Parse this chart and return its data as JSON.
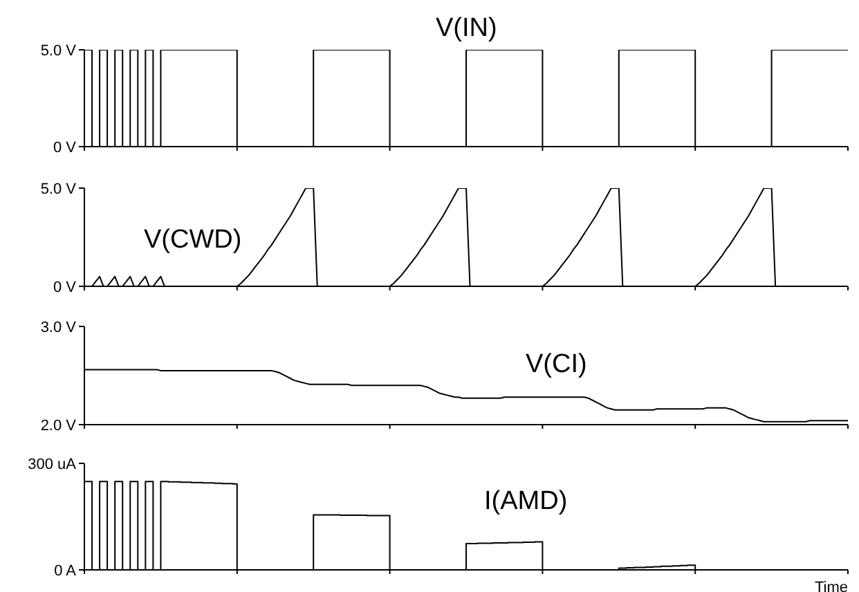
{
  "chart_data": [
    {
      "type": "step",
      "categories": [
        null,
        null,
        null,
        null,
        null,
        null,
        null,
        null,
        null,
        null,
        null,
        null,
        null,
        null,
        null,
        null,
        null,
        null,
        null,
        null,
        null,
        null,
        null,
        null,
        null,
        null,
        null,
        null,
        null,
        null,
        null,
        null,
        null,
        null,
        null,
        null,
        null,
        null,
        null,
        null,
        null,
        null,
        null,
        null,
        null,
        null,
        null,
        null,
        null,
        null,
        null,
        null,
        null,
        null,
        null,
        null,
        null,
        null,
        null,
        null,
        null,
        null,
        null,
        null,
        null,
        null,
        null,
        null,
        null,
        null,
        null,
        null,
        null,
        null,
        null,
        null,
        null,
        null,
        null,
        null,
        null,
        null,
        null,
        null,
        null,
        null,
        null,
        null,
        null,
        null,
        null,
        null,
        null,
        null,
        null,
        null,
        null,
        null,
        null,
        null,
        null,
        null,
        null,
        null,
        null,
        null,
        null,
        null,
        null,
        null,
        null,
        null,
        null,
        null,
        null,
        null,
        null,
        null,
        null,
        null,
        null,
        null,
        null,
        null,
        null,
        null,
        null,
        null,
        null,
        null,
        null,
        null,
        null,
        null,
        null,
        null,
        null,
        null,
        null,
        null,
        null,
        null,
        null,
        null,
        null,
        null,
        null,
        null,
        null,
        null,
        null,
        null,
        null,
        null,
        null,
        null,
        null,
        null,
        null,
        null,
        null,
        null,
        null,
        null,
        null,
        null,
        null,
        null,
        null,
        null,
        null,
        null,
        null,
        null,
        null,
        null,
        null,
        null,
        null,
        null,
        null,
        null,
        null,
        null,
        null,
        null,
        null,
        null,
        null,
        null,
        null,
        null,
        null,
        null,
        null,
        null,
        null,
        null,
        null,
        null,
        null
      ],
      "tick_labels": "y",
      "ylim": [
        0,
        5
      ],
      "yticks": [
        {
          "value": 0,
          "label": "0 V"
        },
        {
          "value": 5,
          "label": "5.0 V"
        }
      ],
      "series": [
        {
          "name": "V(IN)",
          "color": "#000000",
          "values": [
            5,
            5,
            0,
            0,
            5,
            5,
            0,
            0,
            5,
            5,
            0,
            0,
            5,
            5,
            0,
            0,
            5,
            5,
            0,
            0,
            5,
            5,
            5,
            5,
            5,
            5,
            5,
            5,
            5,
            5,
            5,
            5,
            5,
            5,
            5,
            5,
            5,
            5,
            5,
            5,
            0,
            0,
            0,
            0,
            0,
            0,
            0,
            0,
            0,
            0,
            0,
            0,
            0,
            0,
            0,
            0,
            0,
            0,
            0,
            0,
            5,
            5,
            5,
            5,
            5,
            5,
            5,
            5,
            5,
            5,
            5,
            5,
            5,
            5,
            5,
            5,
            5,
            5,
            5,
            5,
            0,
            0,
            0,
            0,
            0,
            0,
            0,
            0,
            0,
            0,
            0,
            0,
            0,
            0,
            0,
            0,
            0,
            0,
            0,
            0,
            5,
            5,
            5,
            5,
            5,
            5,
            5,
            5,
            5,
            5,
            5,
            5,
            5,
            5,
            5,
            5,
            5,
            5,
            5,
            5,
            0,
            0,
            0,
            0,
            0,
            0,
            0,
            0,
            0,
            0,
            0,
            0,
            0,
            0,
            0,
            0,
            0,
            0,
            0,
            0,
            5,
            5,
            5,
            5,
            5,
            5,
            5,
            5,
            5,
            5,
            5,
            5,
            5,
            5,
            5,
            5,
            5,
            5,
            5,
            5,
            0,
            0,
            0,
            0,
            0,
            0,
            0,
            0,
            0,
            0,
            0,
            0,
            0,
            0,
            0,
            0,
            0,
            0,
            0,
            0,
            5,
            5,
            5,
            5,
            5,
            5,
            5,
            5,
            5,
            5,
            5,
            5,
            5,
            5,
            5,
            5,
            5,
            5,
            5,
            5,
            5
          ]
        }
      ]
    },
    {
      "type": "line",
      "categories": [
        null,
        null,
        null,
        null,
        null,
        null,
        null,
        null,
        null,
        null,
        null,
        null,
        null,
        null,
        null,
        null,
        null,
        null,
        null,
        null,
        null,
        null,
        null,
        null,
        null,
        null,
        null,
        null,
        null,
        null,
        null,
        null,
        null,
        null,
        null,
        null,
        null,
        null,
        null,
        null,
        null,
        null,
        null,
        null,
        null,
        null,
        null,
        null,
        null,
        null,
        null,
        null,
        null,
        null,
        null,
        null,
        null,
        null,
        null,
        null,
        null,
        null,
        null,
        null,
        null,
        null,
        null,
        null,
        null,
        null,
        null,
        null,
        null,
        null,
        null,
        null,
        null,
        null,
        null,
        null,
        null,
        null,
        null,
        null,
        null,
        null,
        null,
        null,
        null,
        null,
        null,
        null,
        null,
        null,
        null,
        null,
        null,
        null,
        null,
        null,
        null,
        null,
        null,
        null,
        null,
        null,
        null,
        null,
        null,
        null,
        null,
        null,
        null,
        null,
        null,
        null,
        null,
        null,
        null,
        null,
        null,
        null,
        null,
        null,
        null,
        null,
        null,
        null,
        null,
        null,
        null,
        null,
        null,
        null,
        null,
        null,
        null,
        null,
        null,
        null,
        null,
        null,
        null,
        null,
        null,
        null,
        null,
        null,
        null,
        null,
        null,
        null,
        null,
        null,
        null,
        null,
        null,
        null,
        null,
        null,
        null,
        null,
        null,
        null,
        null,
        null,
        null,
        null,
        null,
        null,
        null,
        null,
        null,
        null,
        null,
        null,
        null,
        null,
        null,
        null,
        null,
        null,
        null,
        null,
        null,
        null,
        null,
        null,
        null,
        null,
        null,
        null,
        null,
        null,
        null,
        null,
        null,
        null,
        null,
        null,
        null
      ],
      "tick_labels": "y",
      "ylim": [
        0,
        5
      ],
      "yticks": [
        {
          "value": 0,
          "label": "0 V"
        },
        {
          "value": 5,
          "label": "5.0 V"
        }
      ],
      "series": [
        {
          "name": "V(CWD)",
          "color": "#000000",
          "values": [
            0,
            0,
            0,
            0.25,
            0.5,
            0,
            0,
            0.25,
            0.5,
            0,
            0,
            0.25,
            0.5,
            0,
            0,
            0.25,
            0.5,
            0,
            0,
            0.25,
            0.5,
            0,
            0,
            0,
            0,
            0,
            0,
            0,
            0,
            0,
            0,
            0,
            0,
            0,
            0,
            0,
            0,
            0,
            0,
            0,
            0,
            0.15,
            0.35,
            0.55,
            0.8,
            1.05,
            1.3,
            1.55,
            1.85,
            2.1,
            2.4,
            2.7,
            3.0,
            3.3,
            3.6,
            3.95,
            4.3,
            4.65,
            5,
            5,
            5,
            0,
            0,
            0,
            0,
            0,
            0,
            0,
            0,
            0,
            0,
            0,
            0,
            0,
            0,
            0,
            0,
            0,
            0,
            0,
            0,
            0.15,
            0.35,
            0.55,
            0.8,
            1.05,
            1.3,
            1.55,
            1.85,
            2.1,
            2.4,
            2.7,
            3.0,
            3.3,
            3.6,
            3.95,
            4.3,
            4.65,
            5,
            5,
            5,
            0,
            0,
            0,
            0,
            0,
            0,
            0,
            0,
            0,
            0,
            0,
            0,
            0,
            0,
            0,
            0,
            0,
            0,
            0,
            0,
            0.15,
            0.35,
            0.55,
            0.8,
            1.05,
            1.3,
            1.55,
            1.85,
            2.1,
            2.4,
            2.7,
            3.0,
            3.3,
            3.6,
            3.95,
            4.3,
            4.65,
            5,
            5,
            5,
            0,
            0,
            0,
            0,
            0,
            0,
            0,
            0,
            0,
            0,
            0,
            0,
            0,
            0,
            0,
            0,
            0,
            0,
            0,
            0,
            0.15,
            0.35,
            0.55,
            0.8,
            1.05,
            1.3,
            1.55,
            1.85,
            2.1,
            2.4,
            2.7,
            3.0,
            3.3,
            3.6,
            3.95,
            4.3,
            4.65,
            5,
            5,
            5,
            0,
            0,
            0,
            0,
            0,
            0,
            0,
            0,
            0,
            0,
            0,
            0,
            0,
            0,
            0,
            0,
            0,
            0,
            0,
            0
          ]
        }
      ]
    },
    {
      "type": "line",
      "categories": [
        null,
        null,
        null,
        null,
        null,
        null,
        null,
        null,
        null,
        null,
        null,
        null,
        null,
        null,
        null,
        null,
        null,
        null,
        null,
        null,
        null,
        null,
        null,
        null,
        null,
        null,
        null,
        null,
        null,
        null,
        null,
        null,
        null,
        null,
        null,
        null,
        null,
        null,
        null,
        null,
        null,
        null,
        null,
        null,
        null,
        null,
        null,
        null,
        null,
        null,
        null,
        null,
        null,
        null,
        null,
        null,
        null,
        null,
        null,
        null,
        null,
        null,
        null,
        null,
        null,
        null,
        null,
        null,
        null,
        null,
        null,
        null,
        null,
        null,
        null,
        null,
        null,
        null,
        null,
        null,
        null,
        null,
        null,
        null,
        null,
        null,
        null,
        null,
        null,
        null,
        null,
        null,
        null,
        null,
        null,
        null,
        null,
        null,
        null,
        null,
        null,
        null,
        null,
        null,
        null,
        null,
        null,
        null,
        null,
        null,
        null,
        null,
        null,
        null,
        null,
        null,
        null,
        null,
        null,
        null,
        null,
        null,
        null,
        null,
        null,
        null,
        null,
        null,
        null,
        null,
        null,
        null,
        null,
        null,
        null,
        null,
        null,
        null,
        null,
        null,
        null,
        null,
        null,
        null,
        null,
        null,
        null,
        null,
        null,
        null,
        null,
        null,
        null,
        null,
        null,
        null,
        null,
        null,
        null,
        null,
        null,
        null,
        null,
        null,
        null,
        null,
        null,
        null,
        null,
        null,
        null,
        null,
        null,
        null,
        null,
        null,
        null,
        null,
        null,
        null,
        null,
        null,
        null,
        null,
        null,
        null,
        null,
        null,
        null,
        null,
        null,
        null,
        null,
        null,
        null,
        null,
        null,
        null,
        null,
        null,
        null
      ],
      "tick_labels": "y",
      "ylim": [
        2,
        3
      ],
      "yticks": [
        {
          "value": 2,
          "label": "2.0 V"
        },
        {
          "value": 3,
          "label": "3.0 V"
        }
      ],
      "series": [
        {
          "name": "V(CI)",
          "color": "#000000",
          "values": [
            2.56,
            2.56,
            2.56,
            2.56,
            2.56,
            2.56,
            2.56,
            2.56,
            2.56,
            2.56,
            2.56,
            2.56,
            2.56,
            2.56,
            2.56,
            2.56,
            2.56,
            2.56,
            2.56,
            2.56,
            2.55,
            2.55,
            2.55,
            2.55,
            2.55,
            2.55,
            2.55,
            2.55,
            2.55,
            2.55,
            2.55,
            2.55,
            2.55,
            2.55,
            2.55,
            2.55,
            2.55,
            2.55,
            2.55,
            2.55,
            2.55,
            2.55,
            2.55,
            2.55,
            2.55,
            2.55,
            2.55,
            2.55,
            2.55,
            2.55,
            2.54,
            2.53,
            2.51,
            2.49,
            2.47,
            2.45,
            2.44,
            2.43,
            2.42,
            2.41,
            2.41,
            2.41,
            2.41,
            2.41,
            2.41,
            2.41,
            2.41,
            2.41,
            2.41,
            2.41,
            2.4,
            2.4,
            2.4,
            2.4,
            2.4,
            2.4,
            2.4,
            2.4,
            2.4,
            2.4,
            2.4,
            2.4,
            2.4,
            2.4,
            2.4,
            2.4,
            2.4,
            2.4,
            2.4,
            2.39,
            2.38,
            2.36,
            2.34,
            2.32,
            2.31,
            2.3,
            2.29,
            2.28,
            2.28,
            2.27,
            2.27,
            2.27,
            2.27,
            2.27,
            2.27,
            2.27,
            2.27,
            2.27,
            2.27,
            2.27,
            2.28,
            2.28,
            2.28,
            2.28,
            2.28,
            2.28,
            2.28,
            2.28,
            2.28,
            2.28,
            2.28,
            2.28,
            2.28,
            2.28,
            2.28,
            2.28,
            2.28,
            2.28,
            2.28,
            2.28,
            2.28,
            2.28,
            2.27,
            2.25,
            2.23,
            2.21,
            2.19,
            2.17,
            2.16,
            2.15,
            2.15,
            2.15,
            2.15,
            2.15,
            2.15,
            2.15,
            2.15,
            2.15,
            2.15,
            2.15,
            2.16,
            2.16,
            2.16,
            2.16,
            2.16,
            2.16,
            2.16,
            2.16,
            2.16,
            2.16,
            2.16,
            2.16,
            2.16,
            2.17,
            2.17,
            2.17,
            2.17,
            2.17,
            2.17,
            2.16,
            2.15,
            2.13,
            2.11,
            2.09,
            2.07,
            2.06,
            2.05,
            2.04,
            2.03,
            2.03,
            2.03,
            2.03,
            2.03,
            2.03,
            2.03,
            2.03,
            2.03,
            2.03,
            2.03,
            2.03,
            2.04,
            2.04,
            2.04,
            2.04,
            2.04,
            2.04,
            2.04,
            2.04,
            2.04,
            2.04,
            2.04
          ]
        }
      ]
    },
    {
      "type": "step",
      "categories": [
        null,
        null,
        null,
        null,
        null,
        null,
        null,
        null,
        null,
        null,
        null,
        null,
        null,
        null,
        null,
        null,
        null,
        null,
        null,
        null,
        null,
        null,
        null,
        null,
        null,
        null,
        null,
        null,
        null,
        null,
        null,
        null,
        null,
        null,
        null,
        null,
        null,
        null,
        null,
        null,
        null,
        null,
        null,
        null,
        null,
        null,
        null,
        null,
        null,
        null,
        null,
        null,
        null,
        null,
        null,
        null,
        null,
        null,
        null,
        null,
        null,
        null,
        null,
        null,
        null,
        null,
        null,
        null,
        null,
        null,
        null,
        null,
        null,
        null,
        null,
        null,
        null,
        null,
        null,
        null,
        null,
        null,
        null,
        null,
        null,
        null,
        null,
        null,
        null,
        null,
        null,
        null,
        null,
        null,
        null,
        null,
        null,
        null,
        null,
        null,
        null,
        null,
        null,
        null,
        null,
        null,
        null,
        null,
        null,
        null,
        null,
        null,
        null,
        null,
        null,
        null,
        null,
        null,
        null,
        null,
        null,
        null,
        null,
        null,
        null,
        null,
        null,
        null,
        null,
        null,
        null,
        null,
        null,
        null,
        null,
        null,
        null,
        null,
        null,
        null,
        null,
        null,
        null,
        null,
        null,
        null,
        null,
        null,
        null,
        null,
        null,
        null,
        null,
        null,
        null,
        null,
        null,
        null,
        null,
        null,
        null,
        null,
        null,
        null,
        null,
        null,
        null,
        null,
        null,
        null,
        null,
        null,
        null,
        null,
        null,
        null,
        null,
        null,
        null,
        null,
        null,
        null,
        null,
        null,
        null,
        null,
        null,
        null,
        null,
        null,
        null,
        null,
        null,
        null,
        null,
        null,
        null,
        null,
        null,
        null,
        null
      ],
      "tick_labels": "y",
      "xlabel": "Time",
      "ylim": [
        0,
        300
      ],
      "yticks": [
        {
          "value": 0,
          "label": "0 A"
        },
        {
          "value": 300,
          "label": "300 uA"
        }
      ],
      "series": [
        {
          "name": "I(AMD)",
          "color": "#000000",
          "values": [
            249,
            249,
            0,
            0,
            249,
            249,
            0,
            0,
            249,
            249,
            0,
            0,
            249,
            249,
            0,
            0,
            249,
            249,
            0,
            0,
            249,
            249,
            248,
            248,
            248,
            247,
            247,
            247,
            246,
            246,
            246,
            245,
            245,
            245,
            244,
            244,
            243,
            243,
            243,
            242,
            0,
            0,
            0,
            0,
            0,
            0,
            0,
            0,
            0,
            0,
            0,
            0,
            0,
            0,
            0,
            0,
            0,
            0,
            0,
            0,
            155,
            155,
            155,
            155,
            155,
            155,
            155,
            154,
            154,
            154,
            154,
            154,
            154,
            154,
            153,
            153,
            153,
            153,
            153,
            153,
            0,
            0,
            0,
            0,
            0,
            0,
            0,
            0,
            0,
            0,
            0,
            0,
            0,
            0,
            0,
            0,
            0,
            0,
            0,
            0,
            74,
            74,
            74,
            75,
            75,
            75,
            75,
            76,
            76,
            76,
            76,
            77,
            77,
            77,
            77,
            78,
            78,
            78,
            79,
            79,
            0,
            0,
            0,
            0,
            0,
            0,
            0,
            0,
            0,
            0,
            0,
            0,
            0,
            0,
            0,
            0,
            0,
            0,
            0,
            0,
            5,
            5,
            6,
            6,
            7,
            7,
            7,
            8,
            8,
            9,
            9,
            10,
            10,
            10,
            11,
            11,
            12,
            12,
            13,
            13,
            0,
            0,
            0,
            0,
            0,
            0,
            0,
            0,
            0,
            0,
            0,
            0,
            0,
            0,
            0,
            0,
            0,
            0,
            0,
            0,
            0,
            0,
            0,
            0,
            0,
            0,
            0,
            0,
            0,
            0,
            0,
            0,
            0,
            0,
            0,
            0,
            0,
            0,
            0,
            0,
            0
          ]
        }
      ]
    }
  ]
}
